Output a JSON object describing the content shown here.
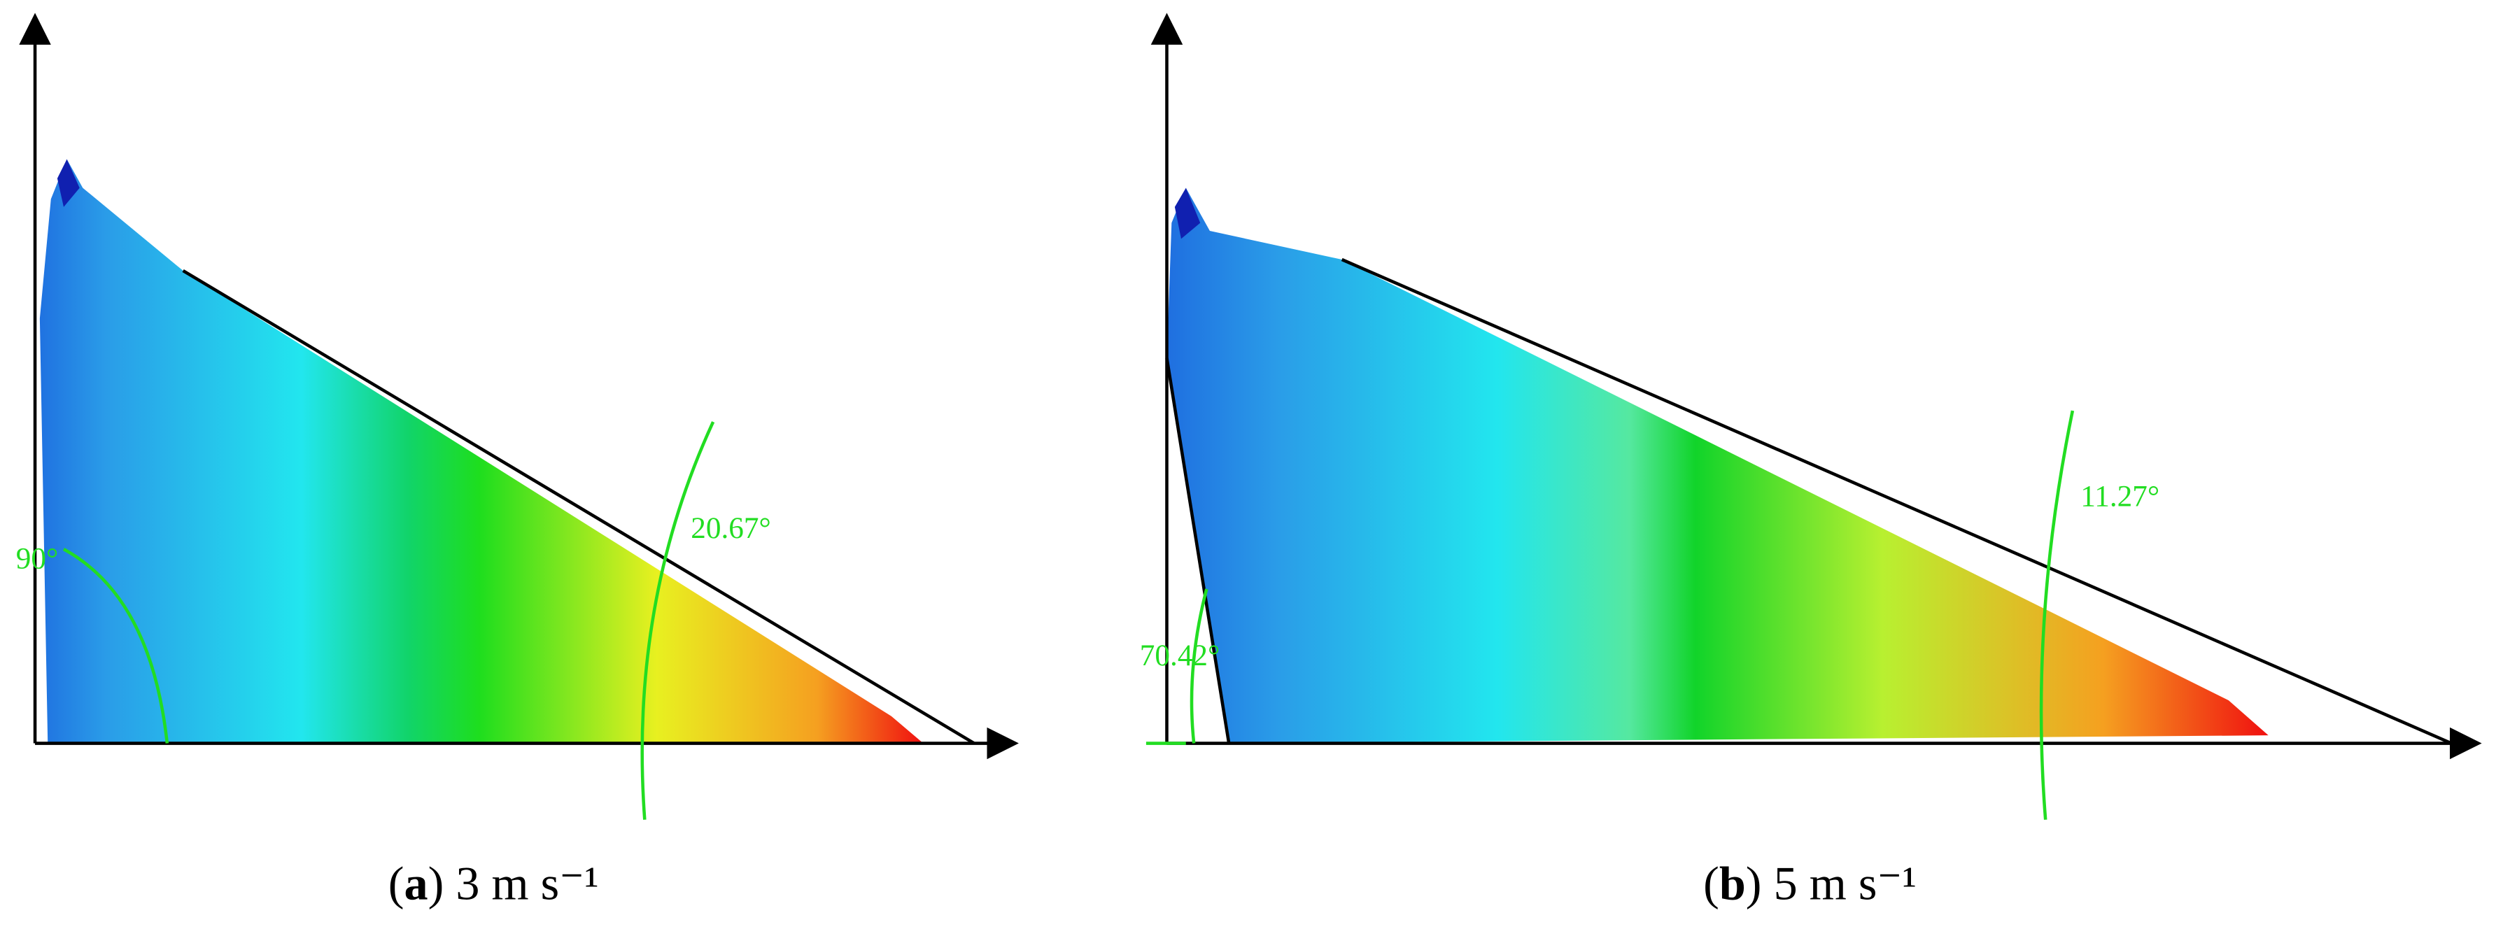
{
  "panels": [
    {
      "angles": [
        "90°",
        "20.67°"
      ],
      "caption": [
        "(",
        "a",
        ") 3 m s⁻¹"
      ]
    },
    {
      "angles": [
        "70.42°",
        "11.27°"
      ],
      "caption": [
        "(",
        "b",
        ") 5 m s⁻¹"
      ]
    }
  ]
}
